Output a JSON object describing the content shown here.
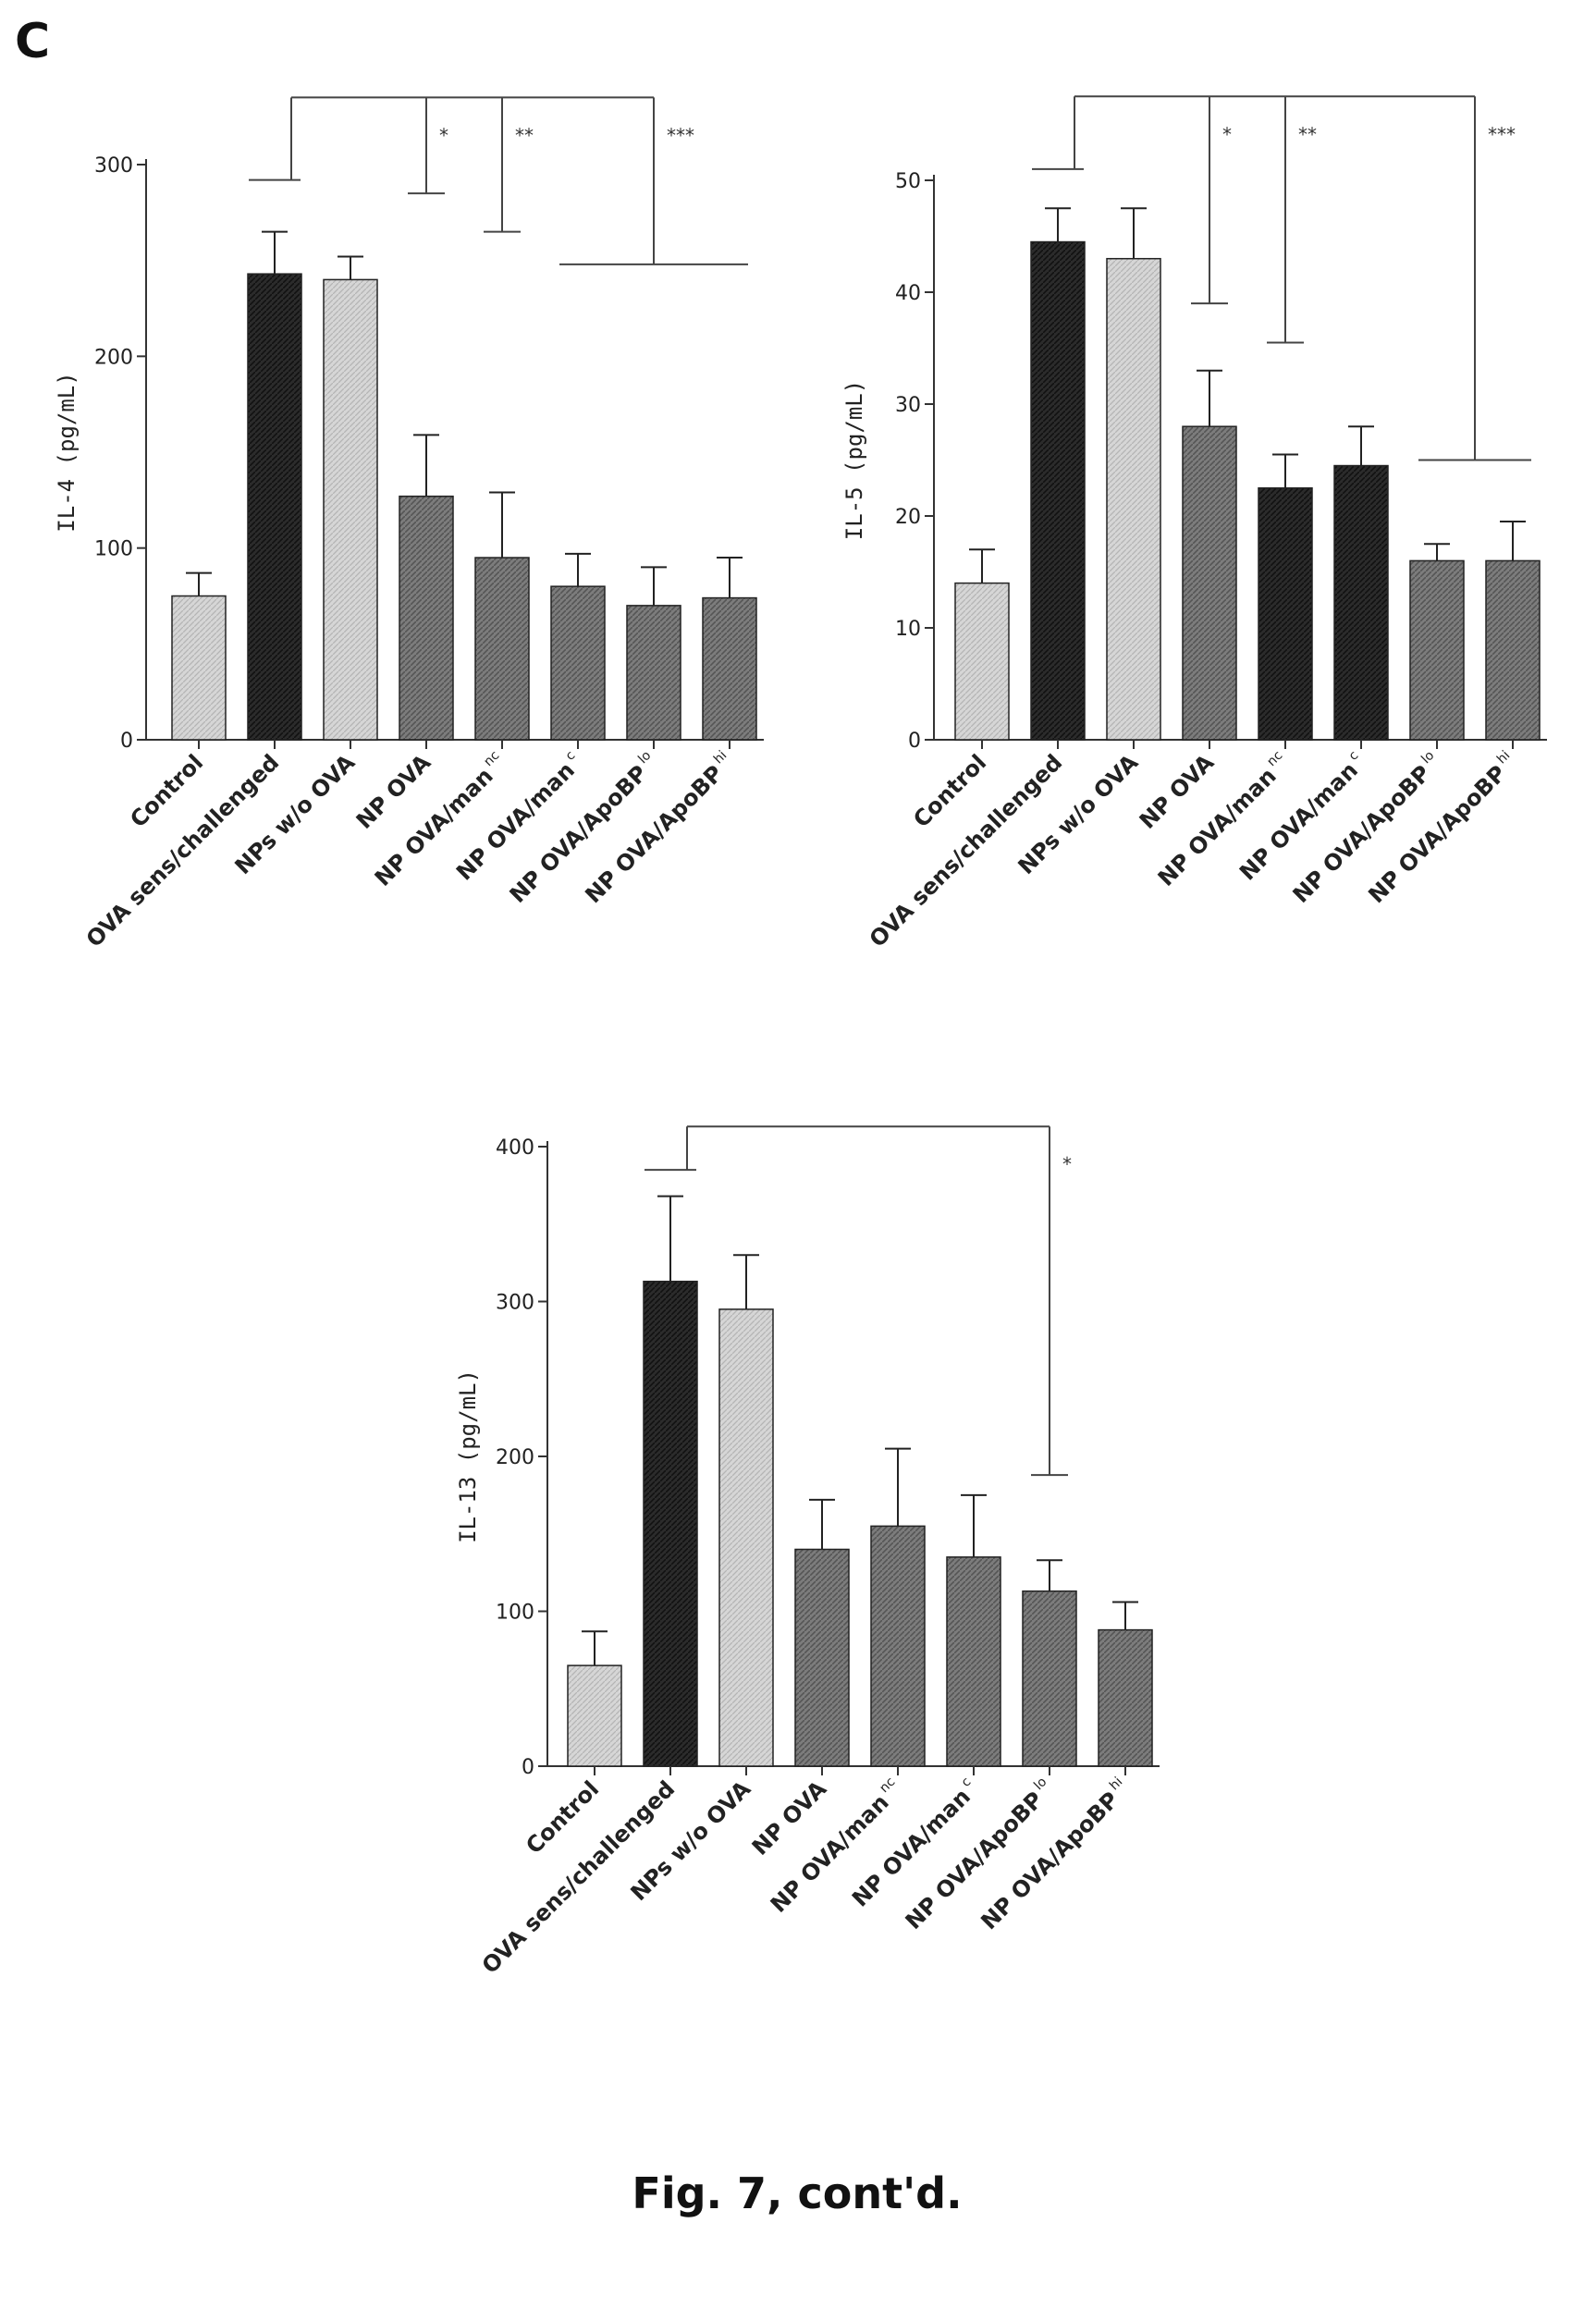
{
  "panel_label": "C",
  "caption": "Fig. 7, cont'd.",
  "chart_data": [
    {
      "type": "bar",
      "ylabel": "IL-4 (pg/mL)",
      "ylim": [
        0,
        300
      ],
      "yticks": [
        0,
        100,
        200,
        300
      ],
      "categories": [
        {
          "text": "Control",
          "sup": ""
        },
        {
          "text": "OVA sens/challenged",
          "sup": ""
        },
        {
          "text": "NPs w/o OVA",
          "sup": ""
        },
        {
          "text": "NP OVA",
          "sup": ""
        },
        {
          "text": "NP OVA/man",
          "sup": "nc"
        },
        {
          "text": "NP OVA/man",
          "sup": "c"
        },
        {
          "text": "NP OVA/ApoBP",
          "sup": "lo"
        },
        {
          "text": "NP OVA/ApoBP",
          "sup": "hi"
        }
      ],
      "values": [
        75,
        243,
        240,
        127,
        95,
        80,
        70,
        74
      ],
      "errors": [
        12,
        22,
        12,
        32,
        34,
        17,
        20,
        21
      ],
      "fills": [
        "light",
        "dark",
        "light",
        "medium",
        "medium",
        "medium",
        "medium",
        "medium"
      ],
      "significance": [
        {
          "label": "*",
          "target_category": 3,
          "bracket_y": 285
        },
        {
          "label": "**",
          "target_category": 4,
          "bracket_y": 265
        },
        {
          "label": "***",
          "target_category_range": [
            5,
            7
          ],
          "bracket_y": 248
        }
      ],
      "reference_category": 1,
      "reference_y": 292,
      "top_y": 335
    },
    {
      "type": "bar",
      "ylabel": "IL-5 (pg/mL)",
      "ylim": [
        0,
        50
      ],
      "yticks": [
        0,
        10,
        20,
        30,
        40,
        50
      ],
      "categories": [
        {
          "text": "Control",
          "sup": ""
        },
        {
          "text": "OVA sens/challenged",
          "sup": ""
        },
        {
          "text": "NPs w/o OVA",
          "sup": ""
        },
        {
          "text": "NP OVA",
          "sup": ""
        },
        {
          "text": "NP OVA/man",
          "sup": "nc"
        },
        {
          "text": "NP OVA/man",
          "sup": "c"
        },
        {
          "text": "NP OVA/ApoBP",
          "sup": "lo"
        },
        {
          "text": "NP OVA/ApoBP",
          "sup": "hi"
        }
      ],
      "values": [
        14,
        44.5,
        43,
        28,
        22.5,
        24.5,
        16,
        16
      ],
      "errors": [
        3,
        3,
        4.5,
        5,
        3,
        3.5,
        1.5,
        3.5
      ],
      "fills": [
        "light",
        "dark",
        "light",
        "medium",
        "dark",
        "dark",
        "medium",
        "medium"
      ],
      "significance": [
        {
          "label": "*",
          "target_category": 3,
          "bracket_y": 39
        },
        {
          "label": "**",
          "target_category": 4,
          "bracket_y": 35.5
        },
        {
          "label": "***",
          "target_category_range": [
            6,
            7
          ],
          "bracket_y": 25
        }
      ],
      "reference_category": 1,
      "reference_y": 51,
      "top_y": 57.5
    },
    {
      "type": "bar",
      "ylabel": "IL-13 (pg/mL)",
      "ylim": [
        0,
        400
      ],
      "yticks": [
        0,
        100,
        200,
        300,
        400
      ],
      "categories": [
        {
          "text": "Control",
          "sup": ""
        },
        {
          "text": "OVA sens/challenged",
          "sup": ""
        },
        {
          "text": "NPs w/o OVA",
          "sup": ""
        },
        {
          "text": "NP OVA",
          "sup": ""
        },
        {
          "text": "NP OVA/man",
          "sup": "nc"
        },
        {
          "text": "NP OVA/man",
          "sup": "c"
        },
        {
          "text": "NP OVA/ApoBP",
          "sup": "lo"
        },
        {
          "text": "NP OVA/ApoBP",
          "sup": "hi"
        }
      ],
      "values": [
        65,
        313,
        295,
        140,
        155,
        135,
        113,
        88
      ],
      "errors": [
        22,
        55,
        35,
        32,
        50,
        40,
        20,
        18
      ],
      "fills": [
        "light",
        "dark",
        "light",
        "medium",
        "medium",
        "medium",
        "medium",
        "medium"
      ],
      "significance": [
        {
          "label": "*",
          "target_category": 6,
          "bracket_y": 188
        }
      ],
      "reference_category": 1,
      "reference_y": 385,
      "top_y": 413
    }
  ]
}
